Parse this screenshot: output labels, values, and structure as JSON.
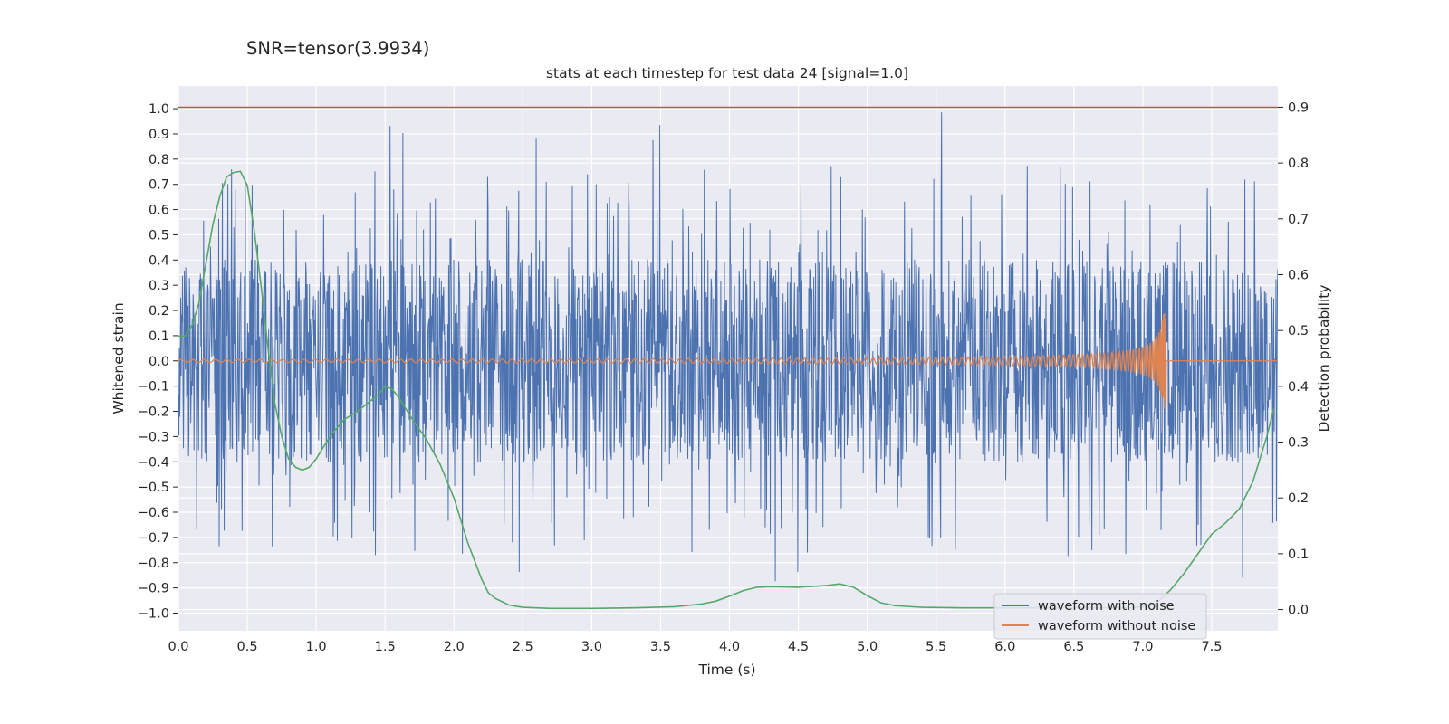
{
  "chart_data": {
    "type": "line",
    "suptitle": "SNR=tensor(3.9934)",
    "title": "stats at each timestep for test data 24 [signal=1.0]",
    "xlabel": "Time (s)",
    "ylabel": "Whitened strain",
    "y2label": "Detection probability",
    "xlim": [
      0.0,
      7.98
    ],
    "ylim": [
      -1.07,
      1.09
    ],
    "y2lim": [
      -0.038,
      0.938
    ],
    "x_ticks": [
      0.0,
      0.5,
      1.0,
      1.5,
      2.0,
      2.5,
      3.0,
      3.5,
      4.0,
      4.5,
      5.0,
      5.5,
      6.0,
      6.5,
      7.0,
      7.5
    ],
    "x_tick_labels": [
      "0.0",
      "0.5",
      "1.0",
      "1.5",
      "2.0",
      "2.5",
      "3.0",
      "3.5",
      "4.0",
      "4.5",
      "5.0",
      "5.5",
      "6.0",
      "6.5",
      "7.0",
      "7.5"
    ],
    "y_ticks": [
      1.0,
      0.9,
      0.8,
      0.7,
      0.6,
      0.5,
      0.4,
      0.3,
      0.2,
      0.1,
      0.0,
      -0.1,
      -0.2,
      -0.3,
      -0.4,
      -0.5,
      -0.6,
      -0.7,
      -0.8,
      -0.9,
      -1.0
    ],
    "y_tick_labels": [
      "1.0",
      "0.9",
      "0.8",
      "0.7",
      "0.6",
      "0.5",
      "0.4",
      "0.3",
      "0.2",
      "0.1",
      "0.0",
      "−0.1",
      "−0.2",
      "−0.3",
      "−0.4",
      "−0.5",
      "−0.6",
      "−0.7",
      "−0.8",
      "−0.9",
      "−1.0"
    ],
    "y2_ticks": [
      0.9,
      0.8,
      0.7,
      0.6,
      0.5,
      0.4,
      0.3,
      0.2,
      0.1,
      0.0
    ],
    "y2_tick_labels": [
      "0.9",
      "0.8",
      "0.7",
      "0.6",
      "0.5",
      "0.4",
      "0.3",
      "0.2",
      "0.1",
      "0.0"
    ],
    "grid": true,
    "legend_position": "bottom-right",
    "threshold": {
      "axis": "y2",
      "value": 0.9,
      "color": "#c44e52"
    },
    "noise_envelope": {
      "typical_amplitude": 0.35,
      "peak_max": 1.0,
      "peak_min": -0.95
    },
    "signal": {
      "merger_time": 7.17,
      "peak_amplitude": 0.19,
      "start_amplitude": 0.006
    },
    "series": [
      {
        "name": "waveform with noise",
        "color": "#4c72b0",
        "axis": "y"
      },
      {
        "name": "waveform without noise",
        "color": "#dd8452",
        "axis": "y"
      },
      {
        "color": "#55a868",
        "axis": "y2",
        "x": [
          0.0,
          0.05,
          0.1,
          0.15,
          0.2,
          0.25,
          0.3,
          0.35,
          0.4,
          0.45,
          0.5,
          0.55,
          0.6,
          0.65,
          0.7,
          0.75,
          0.8,
          0.85,
          0.9,
          0.95,
          1.0,
          1.1,
          1.2,
          1.3,
          1.4,
          1.45,
          1.5,
          1.55,
          1.6,
          1.7,
          1.8,
          1.9,
          2.0,
          2.1,
          2.2,
          2.25,
          2.3,
          2.4,
          2.5,
          2.7,
          3.0,
          3.3,
          3.6,
          3.8,
          3.9,
          4.0,
          4.1,
          4.2,
          4.3,
          4.5,
          4.7,
          4.8,
          4.9,
          5.0,
          5.1,
          5.2,
          5.4,
          5.7,
          6.0,
          6.3,
          6.6,
          6.9,
          7.0,
          7.1,
          7.2,
          7.3,
          7.4,
          7.5,
          7.6,
          7.7,
          7.8,
          7.9,
          7.95
        ],
        "y": [
          0.49,
          0.49,
          0.51,
          0.55,
          0.62,
          0.69,
          0.74,
          0.775,
          0.783,
          0.785,
          0.76,
          0.68,
          0.58,
          0.47,
          0.37,
          0.31,
          0.27,
          0.255,
          0.25,
          0.255,
          0.27,
          0.31,
          0.34,
          0.355,
          0.375,
          0.385,
          0.4,
          0.395,
          0.38,
          0.34,
          0.305,
          0.26,
          0.2,
          0.12,
          0.055,
          0.03,
          0.02,
          0.008,
          0.004,
          0.002,
          0.002,
          0.003,
          0.005,
          0.01,
          0.015,
          0.024,
          0.034,
          0.04,
          0.041,
          0.04,
          0.043,
          0.046,
          0.04,
          0.025,
          0.012,
          0.007,
          0.004,
          0.003,
          0.003,
          0.003,
          0.003,
          0.003,
          0.005,
          0.012,
          0.035,
          0.065,
          0.1,
          0.135,
          0.155,
          0.18,
          0.23,
          0.31,
          0.36
        ]
      }
    ]
  }
}
